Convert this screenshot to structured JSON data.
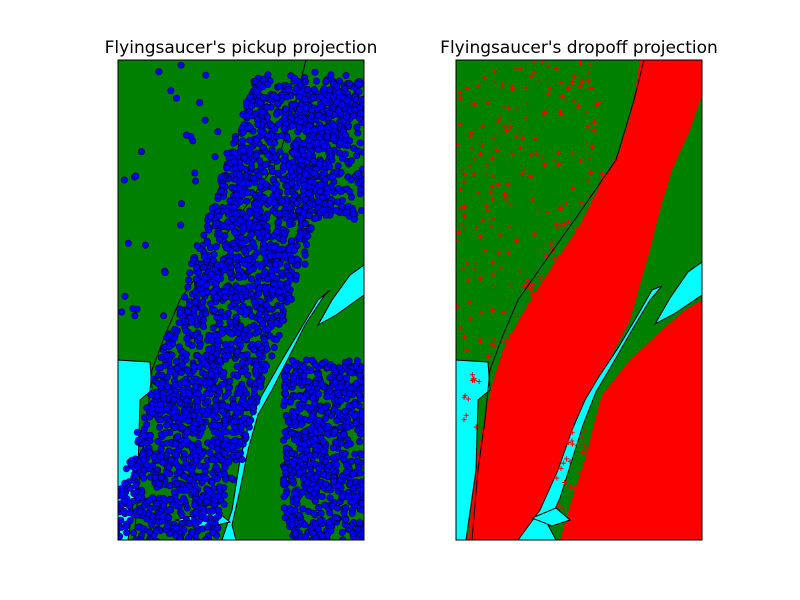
{
  "chart_data": [
    {
      "type": "scatter",
      "title": "Flyingsaucer's pickup projection",
      "xlabel": "",
      "ylabel": "",
      "marker": "circle",
      "grid": false,
      "colors": {
        "land": "#008000",
        "water": "#00ffff",
        "points": "#0000ff",
        "point_edge": "#000033",
        "road": "#000000"
      }
    },
    {
      "type": "scatter",
      "title": "Flyingsaucer's dropoff projection",
      "xlabel": "",
      "ylabel": "",
      "marker": "plus",
      "grid": false,
      "colors": {
        "land": "#008000",
        "water": "#00ffff",
        "points": "#ff0000",
        "road": "#000000"
      }
    }
  ]
}
